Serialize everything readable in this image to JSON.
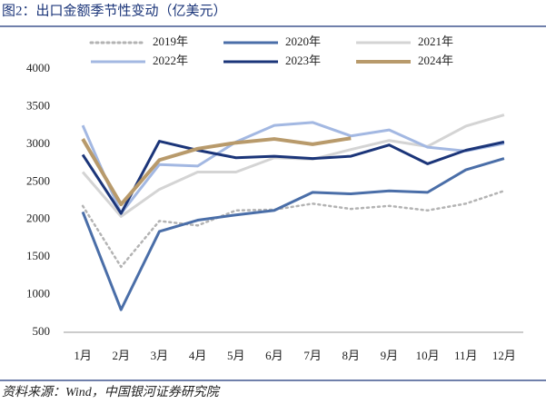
{
  "chart_data": {
    "type": "line",
    "title": "图2：出口金额季节性变动（亿美元）",
    "source": "资料来源：Wind，中国银河证券研究院",
    "categories": [
      "1月",
      "2月",
      "3月",
      "4月",
      "5月",
      "6月",
      "7月",
      "8月",
      "9月",
      "10月",
      "11月",
      "12月"
    ],
    "series": [
      {
        "name": "2019年",
        "color": "#b3b3b3",
        "dash": true,
        "values": [
          2180,
          1370,
          1980,
          1920,
          2120,
          2130,
          2210,
          2140,
          2180,
          2120,
          2210,
          2380
        ]
      },
      {
        "name": "2020年",
        "color": "#4a6ea8",
        "values": [
          2100,
          800,
          1840,
          1990,
          2060,
          2120,
          2360,
          2340,
          2380,
          2360,
          2660,
          2810
        ]
      },
      {
        "name": "2021年",
        "color": "#d4d4d4",
        "values": [
          2630,
          2040,
          2400,
          2630,
          2630,
          2820,
          2800,
          2930,
          3050,
          2970,
          3240,
          3390
        ]
      },
      {
        "name": "2022年",
        "color": "#a3b8e2",
        "values": [
          3250,
          2080,
          2730,
          2710,
          3030,
          3250,
          3290,
          3110,
          3190,
          2960,
          2910,
          3010
        ]
      },
      {
        "name": "2023年",
        "color": "#1b3579",
        "values": [
          2860,
          2080,
          3040,
          2920,
          2820,
          2840,
          2810,
          2840,
          2990,
          2740,
          2920,
          3030
        ]
      },
      {
        "name": "2024年",
        "color": "#b89a6b",
        "wide": true,
        "values": [
          3070,
          2200,
          2790,
          2940,
          3020,
          3070,
          3000,
          3080,
          null,
          null,
          null,
          null
        ]
      }
    ],
    "ylim": [
      500,
      4000
    ],
    "yticks": [
      500,
      1000,
      1500,
      2000,
      2500,
      3000,
      3500,
      4000
    ]
  }
}
